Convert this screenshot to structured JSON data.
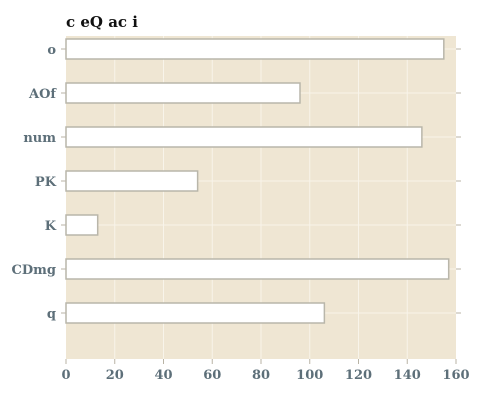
{
  "chart_data": {
    "type": "bar",
    "orientation": "horizontal",
    "title": "c eQ ac  i",
    "categories": [
      "o",
      "AOf",
      "num",
      "PK",
      "K",
      "CDmg",
      "q"
    ],
    "values": [
      155,
      96,
      146,
      54,
      13,
      157,
      106
    ],
    "xlim": [
      0,
      160
    ],
    "xticks": [
      "0",
      "20",
      "40",
      "60",
      "80",
      "100",
      "120",
      "140",
      "160"
    ],
    "grid": true,
    "colors": {
      "plot_background": "#efe6d3",
      "bar_fill": "#ffffff",
      "bar_edge": "#b9b6aa",
      "tick_label": "#5d6f79",
      "title": "#111111"
    }
  }
}
